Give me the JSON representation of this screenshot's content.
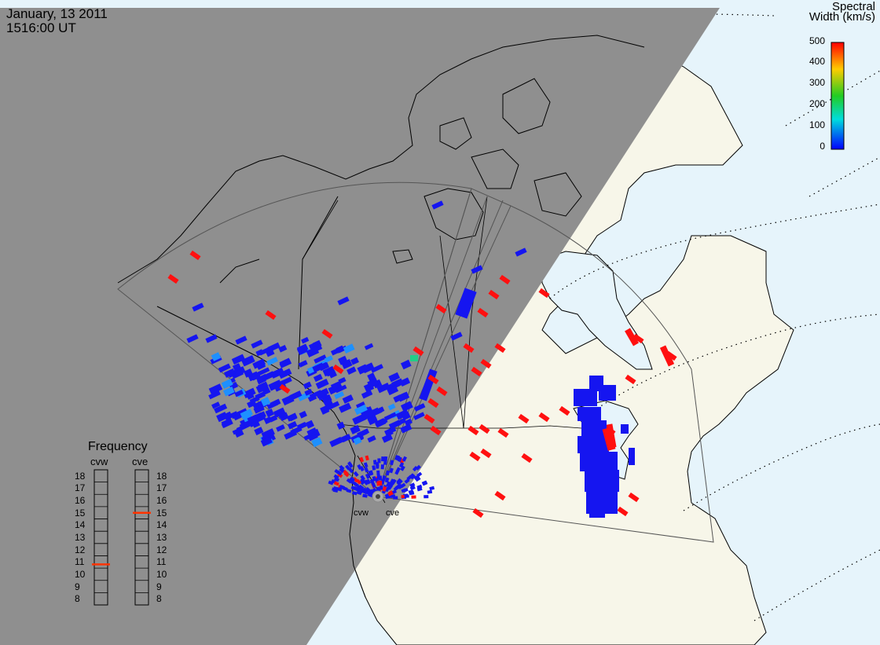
{
  "header": {
    "date": "January, 13 2011",
    "time": "1516:00 UT"
  },
  "colorbar": {
    "title_line1": "Spectral",
    "title_line2": "Width (km/s)",
    "ticks": [
      "500",
      "400",
      "300",
      "200",
      "100",
      "0"
    ],
    "colors": {
      "high": "#ff0000",
      "mid_high": "#ffcc00",
      "mid": "#22cc22",
      "mid_low": "#00dddd",
      "low": "#0000ff"
    }
  },
  "frequency": {
    "title": "Frequency",
    "columns": [
      "cvw",
      "cve"
    ],
    "scale": [
      "18",
      "17",
      "16",
      "15",
      "14",
      "13",
      "12",
      "11",
      "10",
      "9",
      "8"
    ],
    "cvw_value": 10.8,
    "cve_value": 15.0
  },
  "radars": {
    "west": "cvw",
    "east": "cve"
  },
  "colors": {
    "night": "#8f8f8f",
    "land_day": "#f7f6e9",
    "ocean_day": "#e6f4fb",
    "echo_low": "#1515f0",
    "echo_high": "#ff1010",
    "echo_mid": "#1e90ff",
    "echo_green": "#22cc88"
  }
}
